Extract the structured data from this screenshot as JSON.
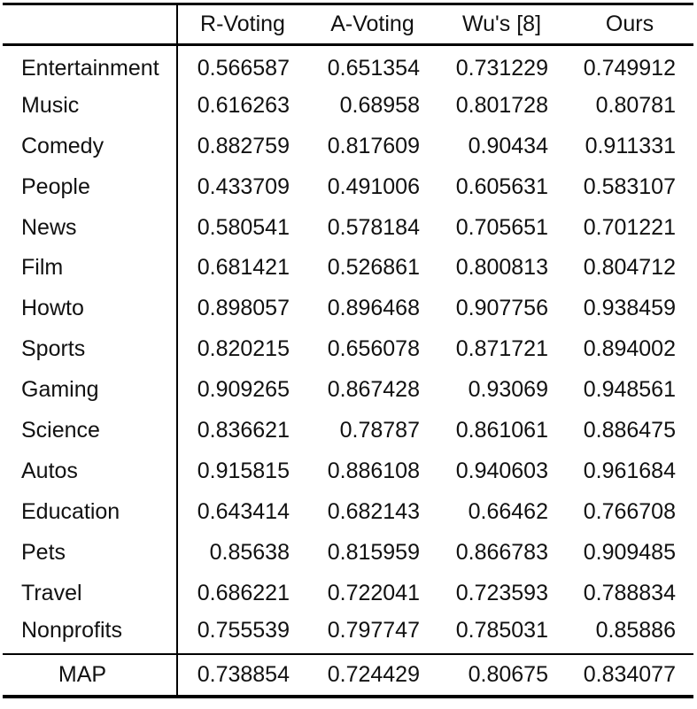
{
  "table": {
    "columns": [
      "",
      "R-Voting",
      "A-Voting",
      "Wu's [8]",
      "Ours"
    ],
    "rows": [
      {
        "label": "Entertainment",
        "values": [
          "0.566587",
          "0.651354",
          "0.731229",
          "0.749912"
        ]
      },
      {
        "label": "Music",
        "values": [
          "0.616263",
          "0.68958",
          "0.801728",
          "0.80781"
        ]
      },
      {
        "label": "Comedy",
        "values": [
          "0.882759",
          "0.817609",
          "0.90434",
          "0.911331"
        ]
      },
      {
        "label": "People",
        "values": [
          "0.433709",
          "0.491006",
          "0.605631",
          "0.583107"
        ]
      },
      {
        "label": "News",
        "values": [
          "0.580541",
          "0.578184",
          "0.705651",
          "0.701221"
        ]
      },
      {
        "label": "Film",
        "values": [
          "0.681421",
          "0.526861",
          "0.800813",
          "0.804712"
        ]
      },
      {
        "label": "Howto",
        "values": [
          "0.898057",
          "0.896468",
          "0.907756",
          "0.938459"
        ]
      },
      {
        "label": "Sports",
        "values": [
          "0.820215",
          "0.656078",
          "0.871721",
          "0.894002"
        ]
      },
      {
        "label": "Gaming",
        "values": [
          "0.909265",
          "0.867428",
          "0.93069",
          "0.948561"
        ]
      },
      {
        "label": "Science",
        "values": [
          "0.836621",
          "0.78787",
          "0.861061",
          "0.886475"
        ]
      },
      {
        "label": "Autos",
        "values": [
          "0.915815",
          "0.886108",
          "0.940603",
          "0.961684"
        ]
      },
      {
        "label": "Education",
        "values": [
          "0.643414",
          "0.682143",
          "0.66462",
          "0.766708"
        ]
      },
      {
        "label": "Pets",
        "values": [
          "0.85638",
          "0.815959",
          "0.866783",
          "0.909485"
        ]
      },
      {
        "label": "Travel",
        "values": [
          "0.686221",
          "0.722041",
          "0.723593",
          "0.788834"
        ]
      },
      {
        "label": "Nonprofits",
        "values": [
          "0.755539",
          "0.797747",
          "0.785031",
          "0.85886"
        ]
      }
    ],
    "summary": {
      "label": "MAP",
      "values": [
        "0.738854",
        "0.724429",
        "0.80675",
        "0.834077"
      ]
    }
  }
}
